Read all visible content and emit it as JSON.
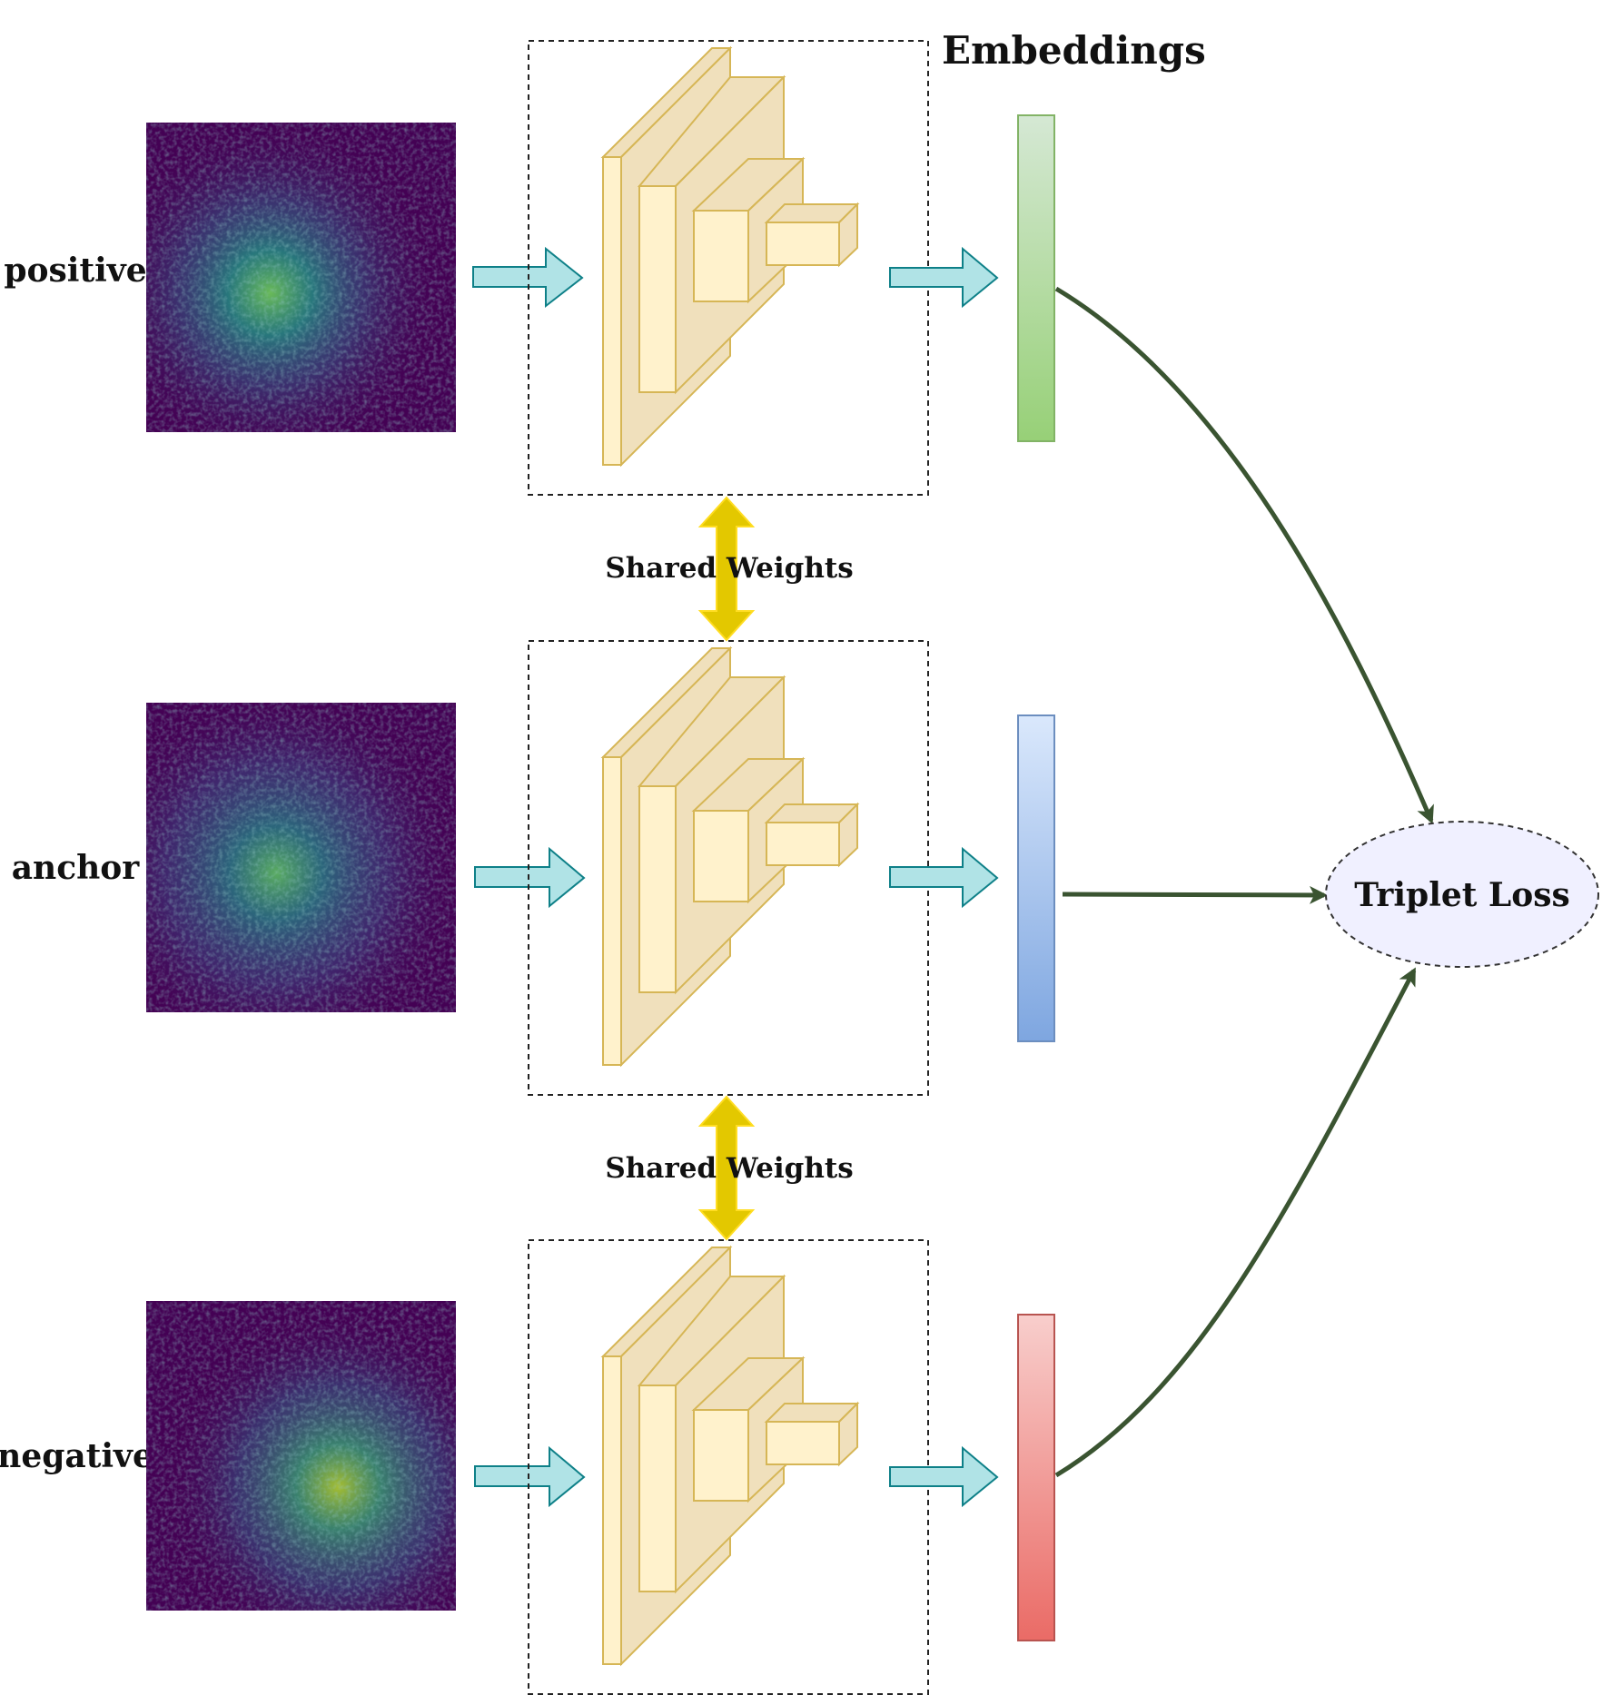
{
  "title": "Embeddings",
  "rows": [
    {
      "label": "positive",
      "embedding_color_top": "#d5e8d4",
      "embedding_color_bottom": "#97d077",
      "embedding_stroke": "#82b366"
    },
    {
      "label": "anchor",
      "embedding_color_top": "#dae8fc",
      "embedding_color_bottom": "#7ea6e0",
      "embedding_stroke": "#6c8ebf"
    },
    {
      "label": "negative",
      "embedding_color_top": "#f8cecc",
      "embedding_color_bottom": "#ea6b66",
      "embedding_stroke": "#b85450"
    }
  ],
  "shared_weights": [
    "Shared Weights",
    "Shared Weights"
  ],
  "loss": {
    "label": "Triplet Loss",
    "fill": "#f0f0ff"
  },
  "colors": {
    "network_fill_front": "#fff2cc",
    "network_fill_side": "#f0e0bc",
    "network_stroke": "#d6b656",
    "flow_arrow_fill": "#b0e3e6",
    "flow_arrow_stroke": "#0e8088",
    "shared_arrow": "#e3c800",
    "loss_arrow": "#3a5431",
    "speckle_background": "#440154"
  }
}
